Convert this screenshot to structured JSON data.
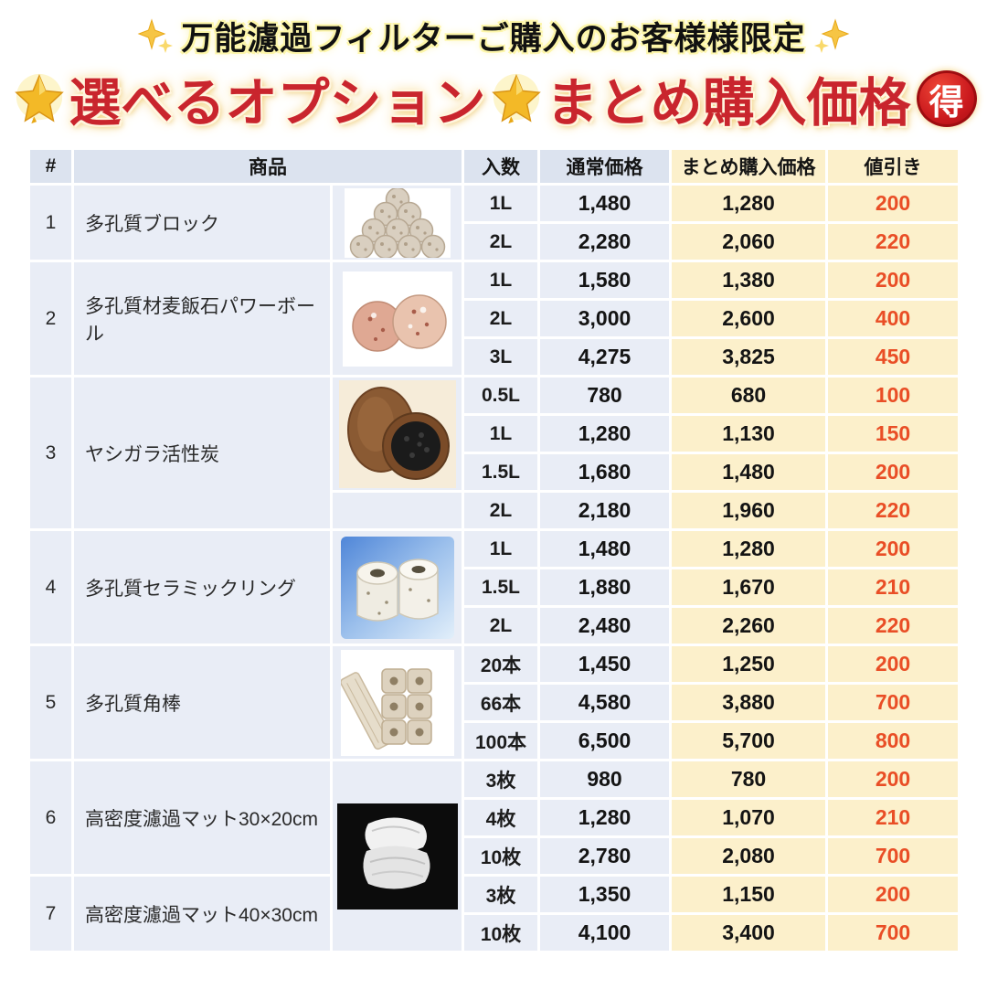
{
  "banner": {
    "text": "万能濾過フィルターご購入のお客様様限定",
    "left_icon": "sparkles-icon",
    "right_icon": "sparkles-icon"
  },
  "title": {
    "part1": "選べるオプション",
    "part2": "まとめ購入価格",
    "badge": "得",
    "star_icon": "glowing-star-icon",
    "accent_color": "#c9252d",
    "badge_color": "#cb1a1e"
  },
  "table": {
    "columns": [
      "#",
      "商品",
      "入数",
      "通常価格",
      "まとめ購入価格",
      "値引き"
    ],
    "products": [
      {
        "no": "1",
        "name": "多孔質ブロック",
        "image": "porous-blocks",
        "variants": [
          {
            "qty": "1L",
            "normal": "1,480",
            "bulk": "1,280",
            "discount": "200"
          },
          {
            "qty": "2L",
            "normal": "2,280",
            "bulk": "2,060",
            "discount": "220"
          }
        ]
      },
      {
        "no": "2",
        "name": "多孔質材麦飯石パワーボール",
        "image": "power-balls",
        "variants": [
          {
            "qty": "1L",
            "normal": "1,580",
            "bulk": "1,380",
            "discount": "200"
          },
          {
            "qty": "2L",
            "normal": "3,000",
            "bulk": "2,600",
            "discount": "400"
          },
          {
            "qty": "3L",
            "normal": "4,275",
            "bulk": "3,825",
            "discount": "450"
          }
        ]
      },
      {
        "no": "3",
        "name": "ヤシガラ活性炭",
        "image": "coconut-carbon",
        "image_rows": 3,
        "variants": [
          {
            "qty": "0.5L",
            "normal": "780",
            "bulk": "680",
            "discount": "100"
          },
          {
            "qty": "1L",
            "normal": "1,280",
            "bulk": "1,130",
            "discount": "150"
          },
          {
            "qty": "1.5L",
            "normal": "1,680",
            "bulk": "1,480",
            "discount": "200"
          },
          {
            "qty": "2L",
            "normal": "2,180",
            "bulk": "1,960",
            "discount": "220"
          }
        ]
      },
      {
        "no": "4",
        "name": "多孔質セラミックリング",
        "image": "ceramic-rings",
        "variants": [
          {
            "qty": "1L",
            "normal": "1,480",
            "bulk": "1,280",
            "discount": "200"
          },
          {
            "qty": "1.5L",
            "normal": "1,880",
            "bulk": "1,670",
            "discount": "210"
          },
          {
            "qty": "2L",
            "normal": "2,480",
            "bulk": "2,260",
            "discount": "220"
          }
        ]
      },
      {
        "no": "5",
        "name": "多孔質角棒",
        "image": "square-rods",
        "variants": [
          {
            "qty": "20本",
            "normal": "1,450",
            "bulk": "1,250",
            "discount": "200"
          },
          {
            "qty": "66本",
            "normal": "4,580",
            "bulk": "3,880",
            "discount": "700"
          },
          {
            "qty": "100本",
            "normal": "6,500",
            "bulk": "5,700",
            "discount": "800"
          }
        ]
      },
      {
        "no": "6",
        "name": "高密度濾過マット30×20cm",
        "image": "filter-mat",
        "image_rows": 5,
        "variants": [
          {
            "qty": "3枚",
            "normal": "980",
            "bulk": "780",
            "discount": "200"
          },
          {
            "qty": "4枚",
            "normal": "1,280",
            "bulk": "1,070",
            "discount": "210"
          },
          {
            "qty": "10枚",
            "normal": "2,780",
            "bulk": "2,080",
            "discount": "700"
          }
        ]
      },
      {
        "no": "7",
        "name": "高密度濾過マット40×30cm",
        "image": null,
        "variants": [
          {
            "qty": "3枚",
            "normal": "1,350",
            "bulk": "1,150",
            "discount": "200"
          },
          {
            "qty": "10枚",
            "normal": "4,100",
            "bulk": "3,400",
            "discount": "700"
          }
        ]
      }
    ]
  },
  "colors": {
    "header_blue": "#dce3ef",
    "cell_blue": "#e9edf6",
    "cream": "#fcf0cb",
    "discount_orange": "#e94e26",
    "title_red": "#c9252d",
    "gridline": "#ffffff"
  }
}
